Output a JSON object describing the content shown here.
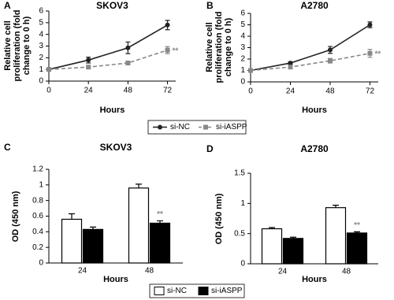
{
  "chart_data": [
    {
      "type": "line",
      "label": "A",
      "title": "SKOV3",
      "ylabel": [
        "Relative cell",
        "proliferation (fold",
        "change to 0 h)"
      ],
      "xlabel": "Hours",
      "x": [
        0,
        24,
        48,
        72
      ],
      "xlim": [
        0,
        77
      ],
      "xticks": [
        0,
        24,
        48,
        72
      ],
      "ylim": [
        0,
        6
      ],
      "yticks": [
        0,
        1,
        2,
        3,
        4,
        5,
        6
      ],
      "annotation": "**",
      "series": [
        {
          "name": "si-NC",
          "color": "#222222",
          "values": [
            1,
            1.8,
            2.85,
            4.8
          ],
          "errors": [
            0.1,
            0.25,
            0.5,
            0.4
          ]
        },
        {
          "name": "si-iASPP",
          "color": "#888888",
          "values": [
            1,
            1.2,
            1.55,
            2.65
          ],
          "errors": [
            0.05,
            0.1,
            0.1,
            0.3
          ]
        }
      ]
    },
    {
      "type": "line",
      "label": "B",
      "title": "A2780",
      "ylabel": [
        "Relative cell",
        "proliferation (fold",
        "change to 0 h)"
      ],
      "xlabel": "Hours",
      "x": [
        0,
        24,
        48,
        72
      ],
      "xlim": [
        0,
        77
      ],
      "xticks": [
        0,
        24,
        48,
        72
      ],
      "ylim": [
        0,
        6
      ],
      "yticks": [
        0,
        1,
        2,
        3,
        4,
        5,
        6
      ],
      "annotation": "**",
      "series": [
        {
          "name": "si-NC",
          "color": "#222222",
          "values": [
            1,
            1.65,
            2.8,
            5.0
          ],
          "errors": [
            0.05,
            0.1,
            0.3,
            0.25
          ]
        },
        {
          "name": "si-iASPP",
          "color": "#888888",
          "values": [
            1,
            1.3,
            1.85,
            2.5
          ],
          "errors": [
            0.05,
            0.1,
            0.2,
            0.35
          ]
        }
      ]
    },
    {
      "type": "bar",
      "label": "C",
      "title": "SKOV3",
      "ylabel": [
        "OD (450 nm)"
      ],
      "xlabel": "Hours",
      "categories": [
        "24",
        "48"
      ],
      "ylim": [
        0,
        1.2
      ],
      "yticks": [
        0,
        0.2,
        0.4,
        0.6,
        0.8,
        1,
        1.2
      ],
      "annotation": "**",
      "series": [
        {
          "name": "si-NC",
          "color": "#ffffff",
          "values": [
            0.56,
            0.96
          ],
          "errors": [
            0.07,
            0.05
          ]
        },
        {
          "name": "si-iASPP",
          "color": "#000000",
          "values": [
            0.43,
            0.51
          ],
          "errors": [
            0.03,
            0.03
          ]
        }
      ]
    },
    {
      "type": "bar",
      "label": "D",
      "title": "A2780",
      "ylabel": [
        "OD (450 nm)"
      ],
      "xlabel": "Hours",
      "categories": [
        "24",
        "48"
      ],
      "ylim": [
        0,
        1.5
      ],
      "yticks": [
        0,
        0.5,
        1,
        1.5
      ],
      "annotation": "**",
      "series": [
        {
          "name": "si-NC",
          "color": "#ffffff",
          "values": [
            0.58,
            0.93
          ],
          "errors": [
            0.02,
            0.04
          ]
        },
        {
          "name": "si-iASPP",
          "color": "#000000",
          "values": [
            0.42,
            0.51
          ],
          "errors": [
            0.02,
            0.02
          ]
        }
      ]
    }
  ]
}
